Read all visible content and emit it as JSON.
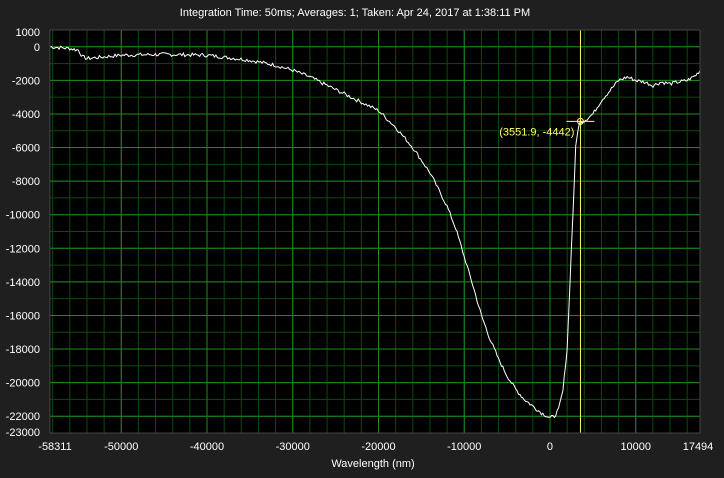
{
  "header": {
    "title": "Integration Time: 50ms;  Averages: 1;  Taken: Apr 24, 2017 at 1:38:11 PM"
  },
  "colors": {
    "background": "#1f1f1f",
    "plot_background": "#000000",
    "grid_major": "#1e8a1e",
    "grid_minor": "#0d4a0d",
    "trace": "#ffffff",
    "cursor": "#ffff66"
  },
  "cursor": {
    "x": 3551.9,
    "y": -4442,
    "label": "(3551.9, -4442)"
  },
  "chart_data": {
    "type": "line",
    "title": "Integration Time: 50ms;  Averages: 1;  Taken: Apr 24, 2017 at 1:38:11 PM",
    "xlabel": "Wavelength (nm)",
    "ylabel": "",
    "xlim": [
      -58311,
      17494
    ],
    "ylim": [
      -23000,
      1000
    ],
    "x_ticks": [
      -58311,
      -50000,
      -40000,
      -30000,
      -20000,
      -10000,
      0,
      10000,
      17494
    ],
    "x_tick_labels": [
      "-58311",
      "-50000",
      "-40000",
      "-30000",
      "-20000",
      "-10000",
      "0",
      "10000",
      "17494"
    ],
    "y_ticks": [
      1000,
      0,
      -2000,
      -4000,
      -6000,
      -8000,
      -10000,
      -12000,
      -14000,
      -16000,
      -18000,
      -20000,
      -22000,
      -23000
    ],
    "y_tick_labels": [
      "1000",
      "0",
      "-2000",
      "-4000",
      "-6000",
      "-8000",
      "-10000",
      "-12000",
      "-14000",
      "-16000",
      "-18000",
      "-20000",
      "-22000",
      "-23000"
    ],
    "grid": true,
    "legend": "none",
    "series": [
      {
        "x": [
          -58311,
          -56000,
          -55000,
          -54500,
          -54000,
          -52000,
          -50000,
          -45000,
          -40000,
          -35000,
          -32000,
          -30000,
          -28000,
          -26000,
          -24000,
          -22000,
          -20000,
          -18000,
          -16000,
          -14000,
          -12000,
          -11000,
          -10000,
          -9000,
          -8000,
          -7000,
          -6000,
          -5000,
          -4000,
          -3000,
          -2000,
          -1000,
          0,
          500,
          1000,
          1500,
          2000,
          2500,
          3000,
          3300,
          3551.9,
          4000,
          4500,
          5000,
          6000,
          7000,
          8000,
          9000,
          10000,
          11000,
          12000,
          13000,
          14000,
          15000,
          16000,
          17000,
          17494
        ],
        "y": [
          0,
          -100,
          -200,
          -600,
          -700,
          -600,
          -500,
          -450,
          -500,
          -800,
          -1100,
          -1400,
          -1800,
          -2300,
          -2800,
          -3300,
          -3800,
          -4800,
          -6000,
          -7500,
          -9500,
          -10800,
          -12500,
          -14200,
          -16000,
          -17400,
          -18600,
          -19600,
          -20400,
          -21000,
          -21400,
          -21800,
          -22100,
          -22000,
          -21600,
          -20500,
          -18000,
          -12000,
          -6000,
          -4800,
          -4442,
          -4400,
          -4200,
          -4000,
          -3200,
          -2600,
          -2000,
          -1800,
          -2000,
          -2100,
          -2300,
          -2100,
          -2200,
          -2100,
          -2000,
          -1700,
          -1400
        ]
      }
    ]
  }
}
